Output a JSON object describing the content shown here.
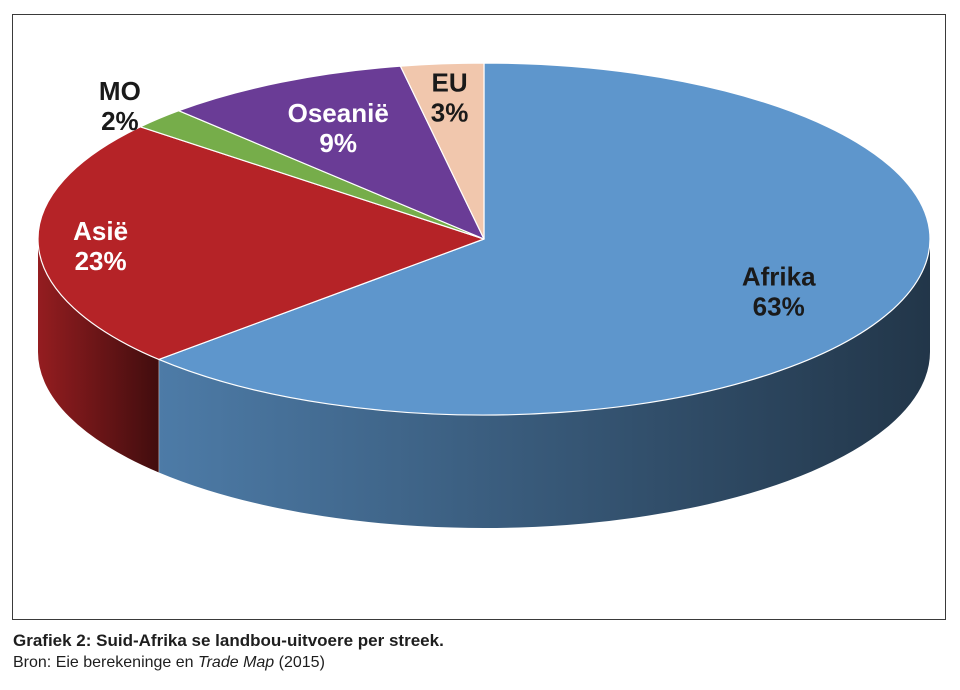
{
  "caption": {
    "title": "Grafiek 2: Suid-Afrika se landbou-uitvoere per streek.",
    "source_prefix": "Bron: Eie berekeninge en ",
    "source_italic": "Trade Map",
    "source_suffix": " (2015)"
  },
  "chart_data": {
    "type": "pie",
    "style": "3d",
    "title": "",
    "slices": [
      {
        "label": "Afrika",
        "value": 63,
        "display": "63%",
        "color": "#5e96cc",
        "label_color": "#1a1a1a"
      },
      {
        "label": "Asië",
        "value": 23,
        "display": "23%",
        "color": "#b52327",
        "label_color": "#ffffff"
      },
      {
        "label": "MO",
        "value": 2,
        "display": "2%",
        "color": "#76ad4a",
        "label_color": "#1a1a1a"
      },
      {
        "label": "Oseanië",
        "value": 9,
        "display": "9%",
        "color": "#6a3c96",
        "label_color": "#ffffff"
      },
      {
        "label": "EU",
        "value": 3,
        "display": "3%",
        "color": "#f1c7ad",
        "label_color": "#1a1a1a"
      }
    ]
  }
}
